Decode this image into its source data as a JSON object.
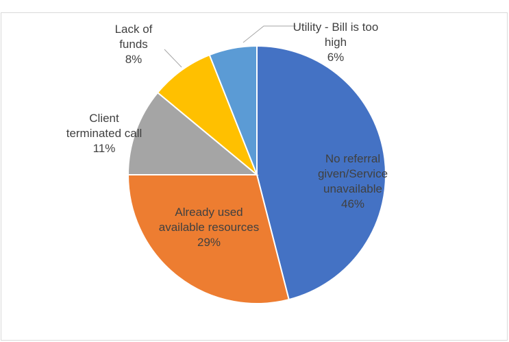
{
  "chart_data": {
    "type": "pie",
    "categories": [
      "No referral given/Service unavailable",
      "Already used available resources",
      "Client terminated call",
      "Lack of funds",
      "Utility - Bill is too high"
    ],
    "values": [
      46,
      29,
      11,
      8,
      6
    ],
    "value_labels": [
      "46%",
      "29%",
      "11%",
      "8%",
      "6%"
    ],
    "colors": [
      "#4472c4",
      "#ed7d31",
      "#a5a5a5",
      "#ffc000",
      "#5b9bd5"
    ]
  }
}
